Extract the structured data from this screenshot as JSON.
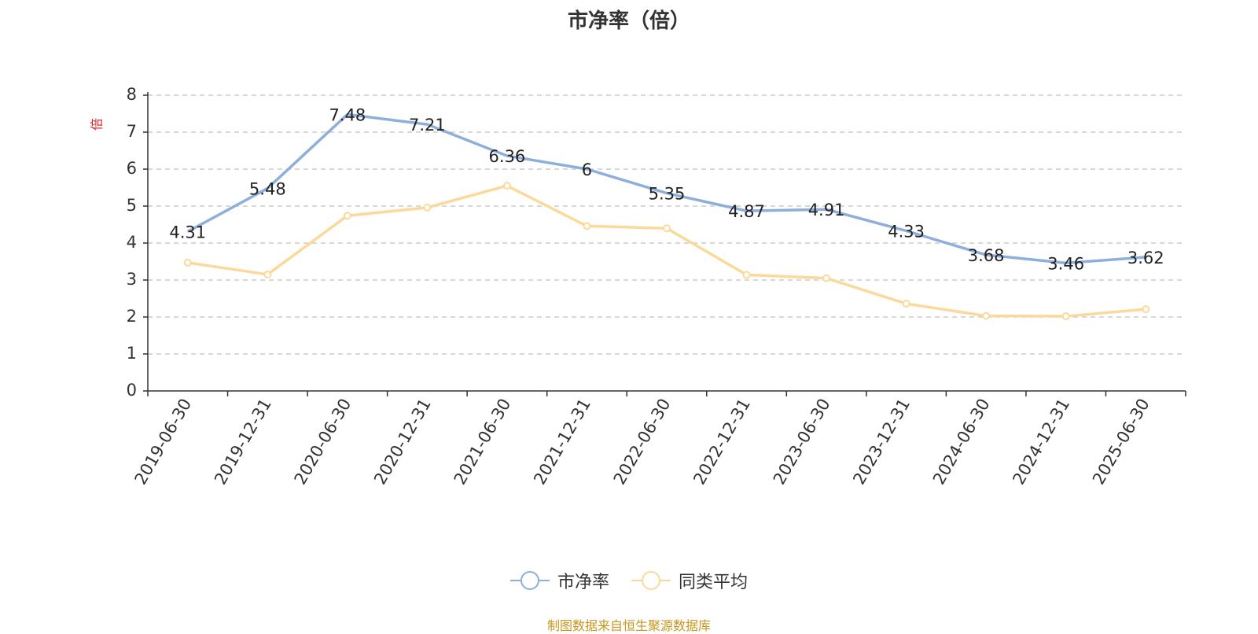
{
  "chart_data": {
    "type": "line",
    "title": "市净率（倍）",
    "ylabel": "倍",
    "xlabel": "",
    "ylim": [
      0,
      8
    ],
    "yticks": [
      0,
      1,
      2,
      3,
      4,
      5,
      6,
      7,
      8
    ],
    "grid": true,
    "legend_position": "bottom",
    "categories": [
      "2019-06-30",
      "2019-12-31",
      "2020-06-30",
      "2020-12-31",
      "2021-06-30",
      "2021-12-31",
      "2022-06-30",
      "2022-12-31",
      "2023-06-30",
      "2023-12-31",
      "2024-06-30",
      "2024-12-31",
      "2025-06-30"
    ],
    "series": [
      {
        "name": "市净率",
        "color": "#8eaedb",
        "values": [
          4.31,
          5.48,
          7.48,
          7.21,
          6.36,
          6,
          5.35,
          4.87,
          4.91,
          4.33,
          3.68,
          3.46,
          3.62
        ],
        "labels": [
          "4.31",
          "5.48",
          "7.48",
          "7.21",
          "6.36",
          "6",
          "5.35",
          "4.87",
          "4.91",
          "4.33",
          "3.68",
          "3.46",
          "3.62"
        ],
        "show_labels": true
      },
      {
        "name": "同类平均",
        "color": "#fbd99a",
        "values": [
          3.47,
          3.15,
          4.74,
          4.96,
          5.55,
          4.46,
          4.4,
          3.14,
          3.05,
          2.36,
          2.03,
          2.02,
          2.21
        ],
        "show_labels": false
      }
    ]
  },
  "footer": {
    "source_note": "制图数据来自恒生聚源数据库"
  }
}
